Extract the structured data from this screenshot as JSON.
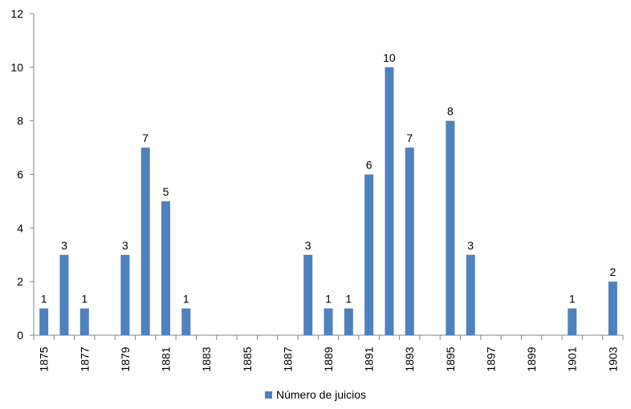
{
  "chart_data": {
    "type": "bar",
    "x_ticks": [
      "1875",
      "1877",
      "1879",
      "1881",
      "1883",
      "1885",
      "1887",
      "1889",
      "1891",
      "1893",
      "1895",
      "1897",
      "1899",
      "1901",
      "1903"
    ],
    "categories": [
      "1875",
      "1876",
      "1877",
      "1878",
      "1879",
      "1880",
      "1881",
      "1882",
      "1883",
      "1884",
      "1885",
      "1886",
      "1887",
      "1888",
      "1889",
      "1890",
      "1891",
      "1892",
      "1893",
      "1894",
      "1895",
      "1896",
      "1897",
      "1898",
      "1899",
      "1900",
      "1901",
      "1902",
      "1903"
    ],
    "series": [
      {
        "name": "Número de juicios",
        "color": "#4F81BD",
        "values": [
          1,
          3,
          1,
          null,
          3,
          7,
          5,
          1,
          null,
          null,
          null,
          null,
          null,
          3,
          1,
          1,
          6,
          10,
          7,
          null,
          8,
          3,
          null,
          null,
          null,
          null,
          1,
          null,
          2
        ]
      }
    ],
    "ylim": [
      0,
      12
    ],
    "y_ticks": [
      0,
      2,
      4,
      6,
      8,
      10,
      12
    ],
    "grid": false,
    "legend_position": "bottom",
    "title": "",
    "xlabel": "",
    "ylabel": ""
  }
}
